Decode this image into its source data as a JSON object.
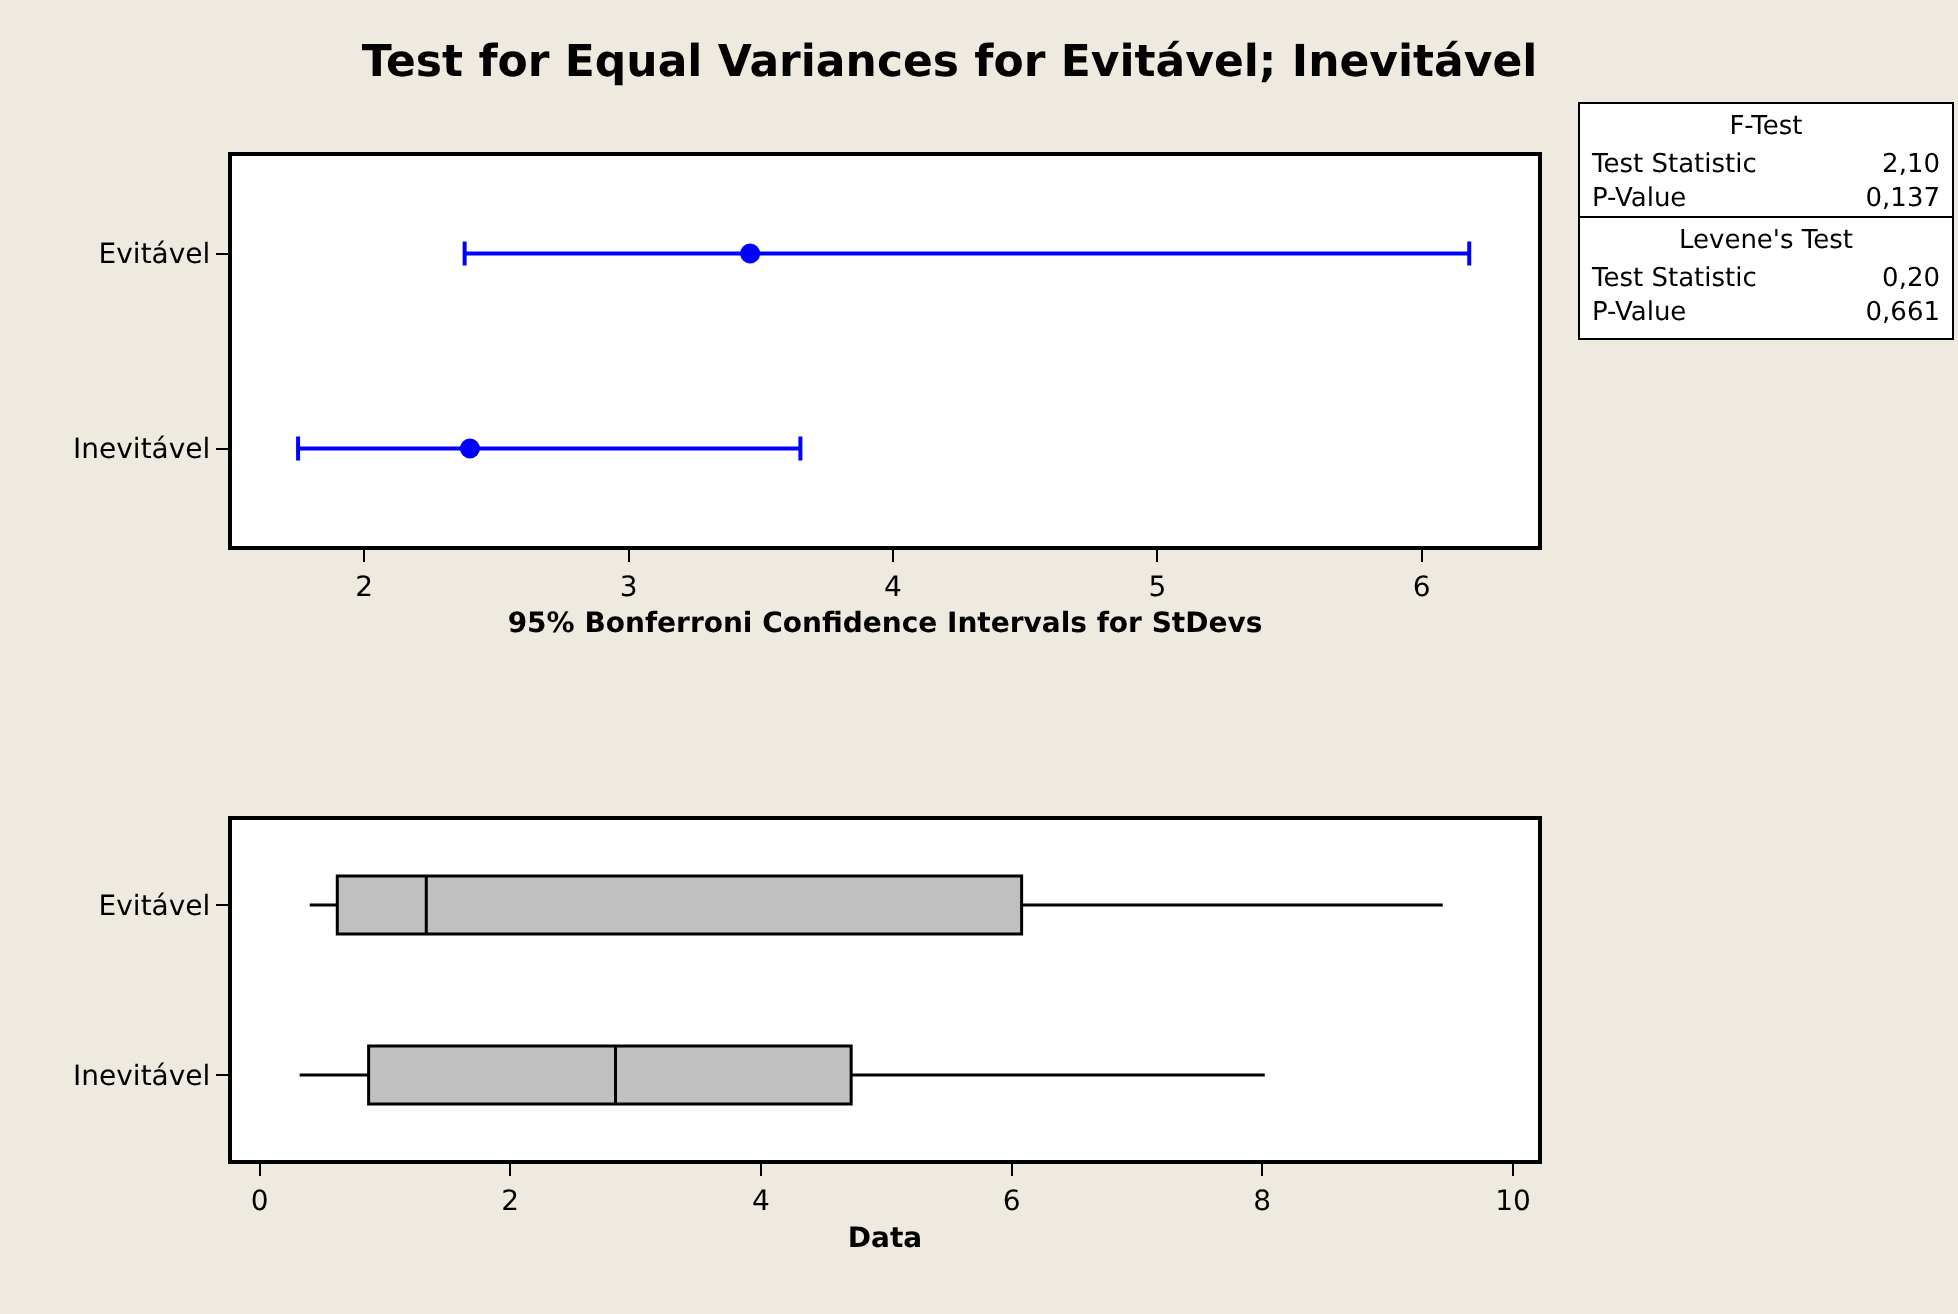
{
  "chart_data": [
    {
      "type": "scatter",
      "title": "Test for Equal Variances for Evitável; Inevitável",
      "xlabel": "95% Bonferroni Confidence Intervals for StDevs",
      "orientation": "horizontal",
      "categories": [
        "Evitável",
        "Inevitável"
      ],
      "series": [
        {
          "color": "#0000ff",
          "values": [
            3.46,
            2.4
          ],
          "errors": [
            [
              2.38,
              6.18
            ],
            [
              1.75,
              3.65
            ]
          ]
        }
      ],
      "xlim": [
        1.5,
        6.44
      ],
      "xticks": [
        2,
        3,
        4,
        5,
        6
      ],
      "marker": "circle",
      "grid": false,
      "legend": false
    },
    {
      "type": "box",
      "xlabel": "Data",
      "orientation": "horizontal",
      "categories": [
        "Evitável",
        "Inevitável"
      ],
      "color": "#c0c0c0",
      "boxes": [
        {
          "low": 0.4,
          "q1": 0.62,
          "median": 1.33,
          "q3": 6.08,
          "high": 9.44
        },
        {
          "low": 0.32,
          "q1": 0.87,
          "median": 2.84,
          "q3": 4.72,
          "high": 8.02
        }
      ],
      "xlim": [
        -0.22,
        10.2
      ],
      "xticks": [
        0,
        2,
        4,
        6,
        8,
        10
      ],
      "grid": false,
      "legend": false
    },
    {
      "type": "other",
      "annotations": [
        "F-Test",
        "Test Statistic",
        "2,10",
        "P-Value",
        "0,137",
        "Levene's Test",
        "Test Statistic",
        "0,20",
        "P-Value",
        "0,661"
      ]
    }
  ]
}
